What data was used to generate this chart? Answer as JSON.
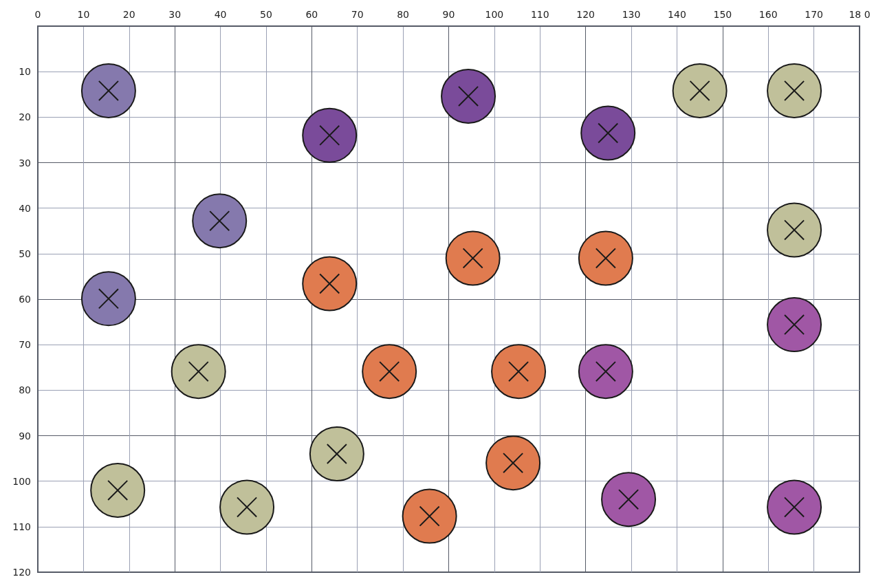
{
  "chart_data": {
    "type": "scatter",
    "marker": "circle",
    "grid": true,
    "xlim": [
      0,
      180
    ],
    "xticks": [
      0,
      10,
      20,
      30,
      40,
      50,
      60,
      70,
      80,
      90,
      100,
      110,
      120,
      130,
      140,
      150,
      160,
      {
        "value": 170,
        "label": "170"
      },
      {
        "value": 180,
        "label": "18 0"
      }
    ],
    "ylim": [
      120,
      0
    ],
    "yticks": [
      10,
      20,
      30,
      40,
      50,
      60,
      70,
      80,
      90,
      100,
      110,
      120
    ],
    "series": [
      {
        "color": "#8579ad",
        "x": [
          15.5,
          39.8,
          15.5
        ],
        "values": [
          14.2,
          42.8,
          59.9
        ]
      },
      {
        "color": "#7a4b9a",
        "x": [
          63.9,
          94.3,
          124.9
        ],
        "values": [
          24,
          15.4,
          23.5
        ]
      },
      {
        "color": "#c0c09a",
        "x": [
          145,
          165.7,
          165.7,
          35.2,
          65.5,
          17.5,
          45.8
        ],
        "values": [
          14.2,
          14.2,
          44.8,
          75.9,
          94,
          102,
          105.7
        ]
      },
      {
        "color": "#e07b4f",
        "x": [
          63.9,
          95.3,
          124.4,
          77,
          105.3,
          104.1,
          85.8
        ],
        "values": [
          56.6,
          51,
          51,
          75.9,
          75.9,
          96,
          107.7
        ]
      },
      {
        "color": "#a057a5",
        "x": [
          165.7,
          124.4,
          129.4,
          165.7
        ],
        "values": [
          65.6,
          75.9,
          104,
          105.7
        ]
      }
    ]
  }
}
